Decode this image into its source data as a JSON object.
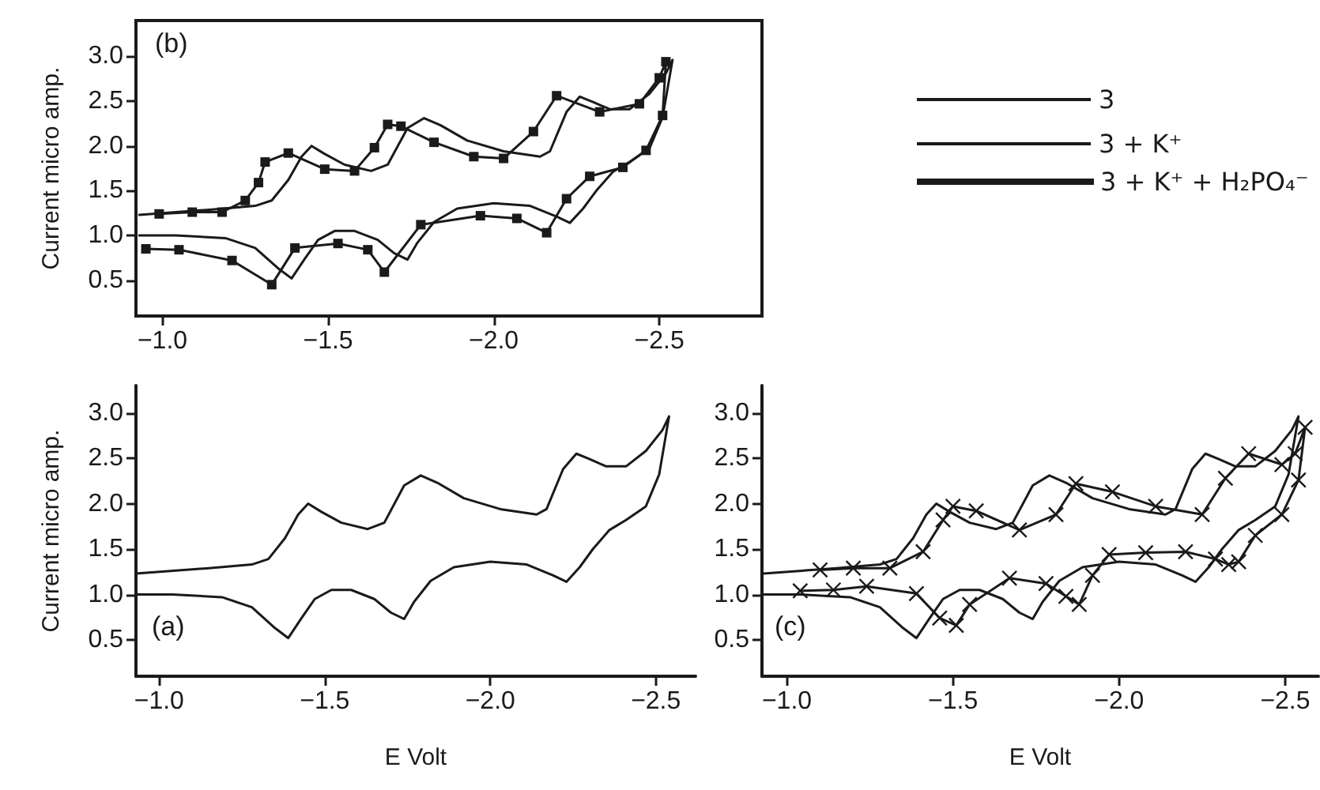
{
  "chart_data": [
    {
      "type": "line",
      "ylabel": "Current micro amp.",
      "annotations": [
        "(b)"
      ],
      "legend": "top right",
      "grid": false,
      "line_style": "solid",
      "xlim": [
        -0.92,
        -2.81
      ],
      "xticks": [
        {
          "value": -1,
          "label": "−1.0"
        },
        {
          "value": -1.5,
          "label": "−1.5"
        },
        {
          "value": -2,
          "label": "−2.0"
        },
        {
          "value": -2.5,
          "label": "−2.5"
        }
      ],
      "ylim": [
        0.1,
        3.4
      ],
      "yticks": [
        0.5,
        {
          "value": 1,
          "label": "1.0"
        },
        1.5,
        {
          "value": 2,
          "label": "2.0"
        },
        2.5,
        {
          "value": 3,
          "label": "3.0"
        }
      ],
      "series": [
        {
          "name": "3",
          "color": "#1a1a1a",
          "marker": "none",
          "x": [
            -0.93,
            -1.15,
            -1.28,
            -1.33,
            -1.38,
            -1.42,
            -1.45,
            -1.49,
            -1.55,
            -1.63,
            -1.68,
            -1.74,
            -1.79,
            -1.84,
            -1.92,
            -2.03,
            -2.14,
            -2.17,
            -2.22,
            -2.26,
            -2.3,
            -2.35,
            -2.41,
            -2.47,
            -2.52,
            -2.54,
            -2.51,
            -2.47,
            -2.41,
            -2.36,
            -2.31,
            -2.27,
            -2.23,
            -2.19,
            -2.11,
            -2.0,
            -1.89,
            -1.82,
            -1.77,
            -1.74,
            -1.7,
            -1.65,
            -1.58,
            -1.52,
            -1.47,
            -1.43,
            -1.39,
            -1.35,
            -1.28,
            -1.19,
            -1.04,
            -0.93
          ],
          "values": [
            1.23,
            1.29,
            1.33,
            1.39,
            1.62,
            1.88,
            2.0,
            1.91,
            1.79,
            1.72,
            1.79,
            2.2,
            2.31,
            2.23,
            2.06,
            1.94,
            1.88,
            1.94,
            2.38,
            2.55,
            2.49,
            2.41,
            2.41,
            2.58,
            2.81,
            2.96,
            2.32,
            1.97,
            1.82,
            1.71,
            1.5,
            1.3,
            1.14,
            1.21,
            1.33,
            1.36,
            1.3,
            1.15,
            0.92,
            0.73,
            0.8,
            0.95,
            1.05,
            1.05,
            0.95,
            0.74,
            0.52,
            0.63,
            0.86,
            0.97,
            1.0,
            1.0
          ]
        },
        {
          "name": "3 + K⁺",
          "color": "#1a1a1a",
          "marker": "square",
          "x": [
            -0.99,
            -1.09,
            -1.18,
            -1.25,
            -1.29,
            -1.31,
            -1.38,
            -1.49,
            -1.58,
            -1.64,
            -1.68,
            -1.72,
            -1.82,
            -1.94,
            -2.03,
            -2.12,
            -2.19,
            -2.32,
            -2.44,
            -2.5,
            -2.52,
            -2.51,
            -2.46,
            -2.39,
            -2.29,
            -2.22,
            -2.16,
            -2.07,
            -1.96,
            -1.78,
            -1.67,
            -1.62,
            -1.53,
            -1.4,
            -1.33,
            -1.21,
            -1.05,
            -0.95
          ],
          "values": [
            1.24,
            1.26,
            1.26,
            1.39,
            1.59,
            1.82,
            1.92,
            1.74,
            1.72,
            1.98,
            2.24,
            2.22,
            2.04,
            1.88,
            1.86,
            2.16,
            2.56,
            2.38,
            2.47,
            2.76,
            2.94,
            2.34,
            1.95,
            1.76,
            1.66,
            1.41,
            1.03,
            1.19,
            1.22,
            1.12,
            0.59,
            0.84,
            0.91,
            0.86,
            0.45,
            0.72,
            0.84,
            0.85
          ]
        }
      ]
    },
    {
      "type": "line",
      "xlabel": "E Volt",
      "ylabel": "Current micro amp.",
      "annotations": [
        "(a)"
      ],
      "grid": false,
      "line_style": "solid",
      "xlim": [
        -0.93,
        -2.62
      ],
      "xticks": [
        {
          "value": -1,
          "label": "−1.0"
        },
        {
          "value": -1.5,
          "label": "−1.5"
        },
        {
          "value": -2,
          "label": "−2.0"
        },
        {
          "value": -2.5,
          "label": "−2.5"
        }
      ],
      "ylim": [
        0.1,
        3.3
      ],
      "yticks": [
        0.5,
        {
          "value": 1,
          "label": "1.0"
        },
        1.5,
        {
          "value": 2,
          "label": "2.0"
        },
        2.5,
        {
          "value": 3,
          "label": "3.0"
        }
      ],
      "series": [
        {
          "color": "#1a1a1a",
          "marker": "none",
          "x": [
            -0.93,
            -1.15,
            -1.28,
            -1.33,
            -1.38,
            -1.42,
            -1.45,
            -1.49,
            -1.55,
            -1.63,
            -1.68,
            -1.74,
            -1.79,
            -1.84,
            -1.92,
            -2.03,
            -2.14,
            -2.17,
            -2.22,
            -2.26,
            -2.3,
            -2.35,
            -2.41,
            -2.47,
            -2.52,
            -2.54,
            -2.51,
            -2.47,
            -2.41,
            -2.36,
            -2.31,
            -2.27,
            -2.23,
            -2.19,
            -2.11,
            -2.0,
            -1.89,
            -1.82,
            -1.77,
            -1.74,
            -1.7,
            -1.65,
            -1.58,
            -1.52,
            -1.47,
            -1.43,
            -1.39,
            -1.35,
            -1.28,
            -1.19,
            -1.04,
            -0.93
          ],
          "values": [
            1.23,
            1.29,
            1.33,
            1.39,
            1.62,
            1.88,
            2.0,
            1.91,
            1.79,
            1.72,
            1.79,
            2.2,
            2.31,
            2.23,
            2.06,
            1.94,
            1.88,
            1.94,
            2.38,
            2.55,
            2.49,
            2.41,
            2.41,
            2.58,
            2.81,
            2.96,
            2.32,
            1.97,
            1.82,
            1.71,
            1.5,
            1.3,
            1.14,
            1.21,
            1.33,
            1.36,
            1.3,
            1.15,
            0.92,
            0.73,
            0.8,
            0.95,
            1.05,
            1.05,
            0.95,
            0.74,
            0.52,
            0.63,
            0.86,
            0.97,
            1.0,
            1.0
          ]
        }
      ]
    },
    {
      "type": "line",
      "xlabel": "E Volt",
      "annotations": [
        "(c)"
      ],
      "legend": "top right",
      "grid": false,
      "line_style": "solid",
      "xlim": [
        -0.925,
        -2.6
      ],
      "xticks": [
        {
          "value": -1,
          "label": "−1.0"
        },
        {
          "value": -1.5,
          "label": "−1.5"
        },
        {
          "value": -2,
          "label": "−2.0"
        },
        {
          "value": -2.5,
          "label": "−2.5"
        }
      ],
      "ylim": [
        0.1,
        3.3
      ],
      "yticks": [
        0.5,
        {
          "value": 1,
          "label": "1.0"
        },
        1.5,
        {
          "value": 2,
          "label": "2.0"
        },
        2.5,
        {
          "value": 3,
          "label": "3.0"
        }
      ],
      "series": [
        {
          "color": "#1a1a1a",
          "marker": "none",
          "x": [
            -0.93,
            -1.15,
            -1.28,
            -1.33,
            -1.38,
            -1.42,
            -1.45,
            -1.49,
            -1.55,
            -1.63,
            -1.68,
            -1.74,
            -1.79,
            -1.84,
            -1.92,
            -2.03,
            -2.14,
            -2.17,
            -2.22,
            -2.26,
            -2.3,
            -2.35,
            -2.41,
            -2.47,
            -2.52,
            -2.54,
            -2.51,
            -2.47,
            -2.41,
            -2.36,
            -2.31,
            -2.27,
            -2.23,
            -2.19,
            -2.11,
            -2.0,
            -1.89,
            -1.82,
            -1.77,
            -1.74,
            -1.7,
            -1.65,
            -1.58,
            -1.52,
            -1.47,
            -1.43,
            -1.39,
            -1.35,
            -1.28,
            -1.19,
            -1.04,
            -0.93
          ],
          "values": [
            1.23,
            1.29,
            1.33,
            1.39,
            1.62,
            1.88,
            2.0,
            1.91,
            1.79,
            1.72,
            1.79,
            2.2,
            2.31,
            2.23,
            2.06,
            1.94,
            1.88,
            1.94,
            2.38,
            2.55,
            2.49,
            2.41,
            2.41,
            2.58,
            2.81,
            2.96,
            2.32,
            1.97,
            1.82,
            1.71,
            1.5,
            1.3,
            1.14,
            1.21,
            1.33,
            1.36,
            1.3,
            1.15,
            0.92,
            0.73,
            0.8,
            0.95,
            1.05,
            1.05,
            0.95,
            0.74,
            0.52,
            0.63,
            0.86,
            0.97,
            1.0,
            1.0
          ]
        },
        {
          "name": "3 + K⁺ + H₂PO₄⁻",
          "color": "#1a1a1a",
          "marker": "cross",
          "x": [
            -1.1,
            -1.2,
            -1.31,
            -1.41,
            -1.47,
            -1.5,
            -1.57,
            -1.7,
            -1.81,
            -1.87,
            -1.98,
            -2.11,
            -2.25,
            -2.32,
            -2.39,
            -2.49,
            -2.53,
            -2.56,
            -2.54,
            -2.49,
            -2.41,
            -2.36,
            -2.33,
            -2.29,
            -2.2,
            -2.08,
            -1.97,
            -1.92,
            -1.88,
            -1.84,
            -1.78,
            -1.67,
            -1.55,
            -1.51,
            -1.46,
            -1.39,
            -1.24,
            -1.14,
            -1.04
          ],
          "values": [
            1.27,
            1.29,
            1.29,
            1.47,
            1.82,
            1.97,
            1.92,
            1.71,
            1.88,
            2.22,
            2.13,
            1.97,
            1.88,
            2.28,
            2.55,
            2.43,
            2.55,
            2.84,
            2.26,
            1.88,
            1.65,
            1.36,
            1.33,
            1.39,
            1.47,
            1.46,
            1.44,
            1.21,
            0.89,
            0.98,
            1.12,
            1.18,
            0.89,
            0.66,
            0.74,
            1.01,
            1.09,
            1.05,
            1.04
          ]
        }
      ]
    }
  ]
}
